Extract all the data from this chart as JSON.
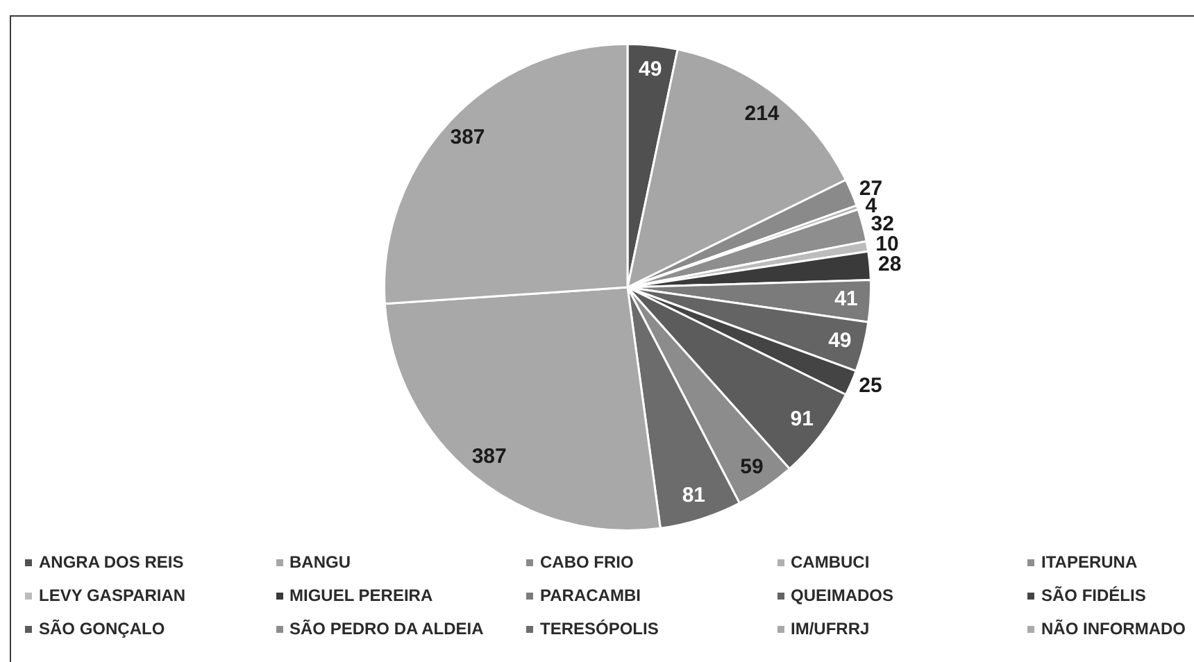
{
  "chart_data": {
    "type": "pie",
    "categories": [
      "ANGRA DOS REIS",
      "BANGU",
      "CABO FRIO",
      "CAMBUCI",
      "ITAPERUNA",
      "LEVY GASPARIAN",
      "MIGUEL PEREIRA",
      "PARACAMBI",
      "QUEIMADOS",
      "SÃO FIDÉLIS",
      "SÃO GONÇALO",
      "SÃO PEDRO DA ALDEIA",
      "TERESÓPOLIS",
      "IM/UFRRJ",
      "NÃO INFORMADO"
    ],
    "values": [
      49,
      214,
      27,
      4,
      32,
      10,
      28,
      41,
      49,
      25,
      91,
      59,
      81,
      387,
      387
    ],
    "colors": [
      "#505050",
      "#a6a6a6",
      "#8a8a8a",
      "#b0b0b0",
      "#8e8e8e",
      "#bcbcbc",
      "#3a3a3a",
      "#7b7b7b",
      "#646464",
      "#444444",
      "#5c5c5c",
      "#8c8c8c",
      "#6c6c6c",
      "#a8a8a8",
      "#aaaaaa"
    ],
    "data_labels": true,
    "legend": "bottom"
  }
}
